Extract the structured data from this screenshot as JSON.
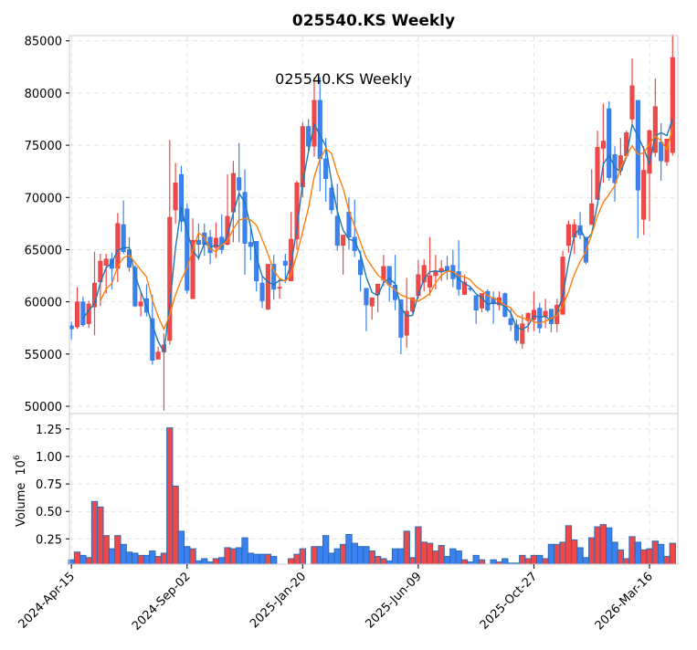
{
  "chart_data": {
    "type": "candlestick",
    "title": "025540.KS  Weekly",
    "inner_title": "025540.KS  Weekly",
    "ylabel_volume": "Volume",
    "volume_exponent": "10",
    "volume_exponent_power": "6",
    "price_ylim": [
      49300,
      85500
    ],
    "volume_ylim": [
      0.02,
      1.39
    ],
    "price_ticks": [
      "50000",
      "55000",
      "60000",
      "65000",
      "70000",
      "75000",
      "80000",
      "85000"
    ],
    "volume_ticks": [
      "0.25",
      "0.50",
      "0.75",
      "1.00",
      "1.25"
    ],
    "x_ticks": [
      {
        "index": 0,
        "label": "2024-Apr-15"
      },
      {
        "index": 20,
        "label": "2024-Sep-02"
      },
      {
        "index": 40,
        "label": "2025-Jan-20"
      },
      {
        "index": 60,
        "label": "2025-Jun-09"
      },
      {
        "index": 80,
        "label": "2025-Oct-27"
      },
      {
        "index": 100,
        "label": "2026-Mar-16"
      }
    ],
    "moving_averages": [
      3,
      6
    ],
    "colors": {
      "up": "#f04848",
      "down": "#3b82f0",
      "up_edge": "#d93a3a",
      "down_edge": "#2f6fcf",
      "vol_edge": "#2a6bb5",
      "ma1": "#1f77b4",
      "ma2": "#ff7f0e",
      "grid": "#e3e3e3"
    },
    "ohlc": [
      [
        57700,
        58100,
        56400,
        57400
      ],
      [
        57600,
        61400,
        57400,
        60000
      ],
      [
        60000,
        60500,
        57600,
        57800
      ],
      [
        57900,
        60100,
        57500,
        59800
      ],
      [
        59500,
        64800,
        56800,
        61800
      ],
      [
        61900,
        64600,
        59600,
        63900
      ],
      [
        63500,
        64600,
        60800,
        64100
      ],
      [
        64100,
        64700,
        61200,
        63200
      ],
      [
        63200,
        68500,
        61900,
        67500
      ],
      [
        67400,
        69700,
        64600,
        64800
      ],
      [
        65000,
        66200,
        62900,
        63300
      ],
      [
        63300,
        63500,
        59500,
        59600
      ],
      [
        59600,
        61000,
        58600,
        60000
      ],
      [
        60300,
        61700,
        58600,
        59000
      ],
      [
        58400,
        60700,
        54000,
        54400
      ],
      [
        54500,
        55700,
        54500,
        55200
      ],
      [
        55200,
        57000,
        49600,
        55900
      ],
      [
        56300,
        75500,
        55900,
        68100
      ],
      [
        68800,
        73300,
        67500,
        71400
      ],
      [
        72200,
        73000,
        66700,
        67700
      ],
      [
        68900,
        69400,
        60800,
        61100
      ],
      [
        60300,
        68000,
        60300,
        65900
      ],
      [
        65900,
        67500,
        64000,
        65500
      ],
      [
        66600,
        67500,
        64400,
        65500
      ],
      [
        66200,
        66900,
        63600,
        64700
      ],
      [
        65200,
        67600,
        64200,
        66100
      ],
      [
        66200,
        68400,
        64600,
        65000
      ],
      [
        65500,
        72200,
        65400,
        68200
      ],
      [
        68600,
        73500,
        65700,
        72300
      ],
      [
        71900,
        75200,
        65700,
        70700
      ],
      [
        70500,
        72700,
        62600,
        65600
      ],
      [
        65700,
        67100,
        64000,
        65300
      ],
      [
        65800,
        65800,
        61000,
        62000
      ],
      [
        61800,
        62500,
        59400,
        60100
      ],
      [
        59300,
        63600,
        59200,
        63600
      ],
      [
        63600,
        64500,
        60200,
        61200
      ],
      [
        61300,
        62300,
        60300,
        61400
      ],
      [
        63900,
        64600,
        61800,
        63500
      ],
      [
        62000,
        68600,
        62000,
        66000
      ],
      [
        66000,
        71600,
        65000,
        71400
      ],
      [
        71000,
        77200,
        70000,
        76800
      ],
      [
        76800,
        77500,
        74500,
        74900
      ],
      [
        74900,
        81500,
        73900,
        79300
      ],
      [
        79300,
        81500,
        70600,
        73700
      ],
      [
        73700,
        75700,
        69600,
        71800
      ],
      [
        70900,
        71300,
        68400,
        68800
      ],
      [
        68200,
        71300,
        64900,
        65400
      ],
      [
        65400,
        66400,
        62600,
        66400
      ],
      [
        68600,
        70000,
        65000,
        66200
      ],
      [
        66200,
        69800,
        64300,
        64900
      ],
      [
        64000,
        64900,
        61000,
        62600
      ],
      [
        61300,
        61300,
        57200,
        59700
      ],
      [
        59600,
        60400,
        58300,
        60400
      ],
      [
        60700,
        61700,
        59000,
        61700
      ],
      [
        62100,
        64500,
        61500,
        63400
      ],
      [
        63400,
        63400,
        60000,
        61600
      ],
      [
        61600,
        64500,
        59200,
        60200
      ],
      [
        60200,
        60200,
        55000,
        56600
      ],
      [
        56800,
        62300,
        55600,
        59100
      ],
      [
        59100,
        60400,
        58900,
        60400
      ],
      [
        60600,
        64000,
        60300,
        62600
      ],
      [
        61900,
        64100,
        61000,
        63500
      ],
      [
        61400,
        66200,
        60600,
        62500
      ],
      [
        62500,
        64500,
        61200,
        62900
      ],
      [
        62900,
        64000,
        62000,
        63200
      ],
      [
        63400,
        64400,
        62100,
        63000
      ],
      [
        63500,
        65000,
        61400,
        62200
      ],
      [
        62900,
        65900,
        60600,
        61200
      ],
      [
        60700,
        62600,
        60700,
        61900
      ],
      [
        61300,
        61500,
        61000,
        61200
      ],
      [
        60600,
        60600,
        57900,
        59200
      ],
      [
        59400,
        60800,
        59000,
        60800
      ],
      [
        61000,
        61200,
        59000,
        59200
      ],
      [
        60400,
        61000,
        57900,
        59800
      ],
      [
        59700,
        61000,
        59200,
        60400
      ],
      [
        60800,
        60900,
        58500,
        58600
      ],
      [
        58400,
        59300,
        57200,
        57800
      ],
      [
        57800,
        58300,
        56000,
        56300
      ],
      [
        56000,
        58800,
        55500,
        57900
      ],
      [
        58200,
        59000,
        57100,
        58900
      ],
      [
        58300,
        61000,
        57200,
        59200
      ],
      [
        59400,
        59900,
        57000,
        57500
      ],
      [
        58600,
        60300,
        57500,
        59100
      ],
      [
        59300,
        59300,
        57100,
        57900
      ],
      [
        57900,
        60300,
        57100,
        59700
      ],
      [
        58800,
        64900,
        58800,
        64300
      ],
      [
        65400,
        67800,
        64700,
        67400
      ],
      [
        66200,
        67900,
        64600,
        67400
      ],
      [
        67300,
        68600,
        66000,
        66400
      ],
      [
        66200,
        66200,
        63600,
        63800
      ],
      [
        67400,
        72700,
        67400,
        69400
      ],
      [
        69800,
        76400,
        69800,
        74800
      ],
      [
        74700,
        79000,
        71400,
        75400
      ],
      [
        78500,
        79200,
        71600,
        71900
      ],
      [
        74100,
        74900,
        69600,
        71400
      ],
      [
        72600,
        75700,
        72100,
        74000
      ],
      [
        74000,
        76400,
        73900,
        76200
      ],
      [
        77500,
        83300,
        77100,
        80700
      ],
      [
        79300,
        79300,
        66100,
        70700
      ],
      [
        67900,
        74900,
        66400,
        72600
      ],
      [
        72300,
        76500,
        67700,
        76400
      ],
      [
        74300,
        81400,
        73900,
        78700
      ],
      [
        75300,
        77100,
        71600,
        73500
      ],
      [
        73400,
        75600,
        73000,
        75600
      ],
      [
        74300,
        85600,
        74000,
        83400
      ]
    ],
    "volume_millions": [
      0.06,
      0.13,
      0.1,
      0.08,
      0.59,
      0.54,
      0.28,
      0.16,
      0.28,
      0.2,
      0.13,
      0.12,
      0.1,
      0.1,
      0.14,
      0.09,
      0.12,
      1.26,
      0.73,
      0.32,
      0.18,
      0.16,
      0.05,
      0.07,
      0.04,
      0.07,
      0.08,
      0.17,
      0.16,
      0.17,
      0.26,
      0.12,
      0.11,
      0.11,
      0.11,
      0.09,
      0.02,
      0.02,
      0.07,
      0.11,
      0.16,
      0.02,
      0.18,
      0.18,
      0.28,
      0.12,
      0.16,
      0.2,
      0.29,
      0.21,
      0.18,
      0.18,
      0.14,
      0.09,
      0.07,
      0.05,
      0.16,
      0.16,
      0.32,
      0.08,
      0.36,
      0.22,
      0.21,
      0.14,
      0.19,
      0.09,
      0.16,
      0.14,
      0.06,
      0.04,
      0.1,
      0.06,
      0.02,
      0.06,
      0.04,
      0.07,
      0.03,
      0.03,
      0.1,
      0.07,
      0.1,
      0.1,
      0.07,
      0.2,
      0.2,
      0.22,
      0.37,
      0.24,
      0.17,
      0.08,
      0.26,
      0.36,
      0.38,
      0.35,
      0.22,
      0.15,
      0.07,
      0.27,
      0.22,
      0.15,
      0.16,
      0.23,
      0.2,
      0.09,
      0.21
    ]
  }
}
